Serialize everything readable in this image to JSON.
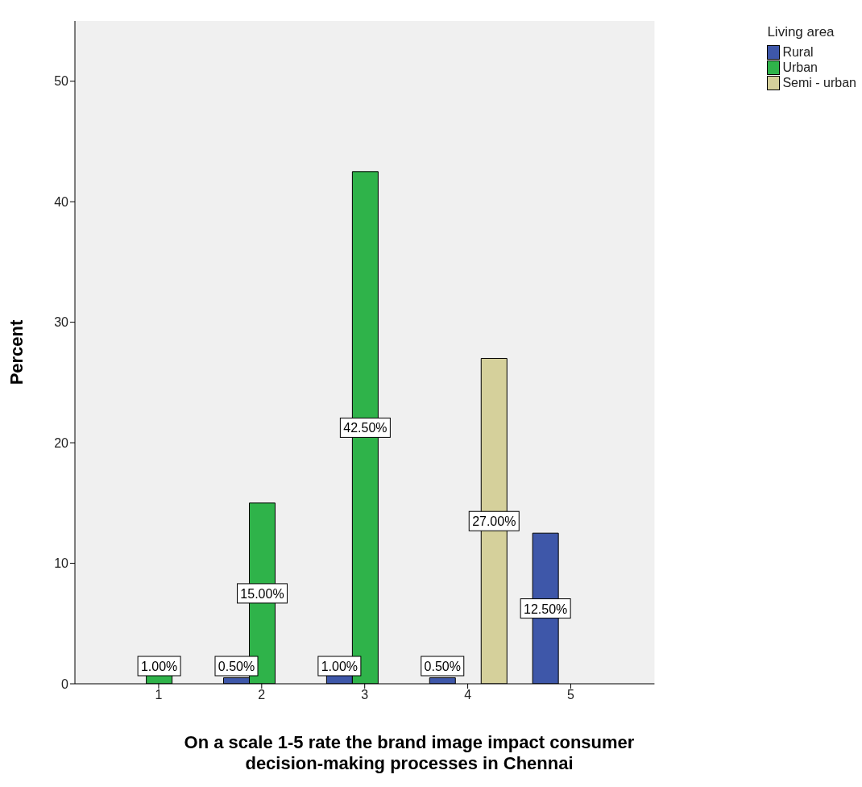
{
  "chart_data": {
    "type": "bar",
    "xlabel": "On a scale 1-5 rate the brand image impact consumer decision-making processes in Chennai",
    "ylabel": "Percent",
    "legend_title": "Living area",
    "legend": "top right",
    "categories": [
      "1",
      "2",
      "3",
      "4",
      "5"
    ],
    "ylim": [
      0,
      55
    ],
    "yticks": [
      0,
      10,
      20,
      30,
      40,
      50
    ],
    "series": [
      {
        "name": "Rural",
        "color": "#3e57a9",
        "values": [
          null,
          0.5,
          1.0,
          0.5,
          12.5
        ],
        "value_labels": [
          null,
          "0.50%",
          "1.00%",
          "0.50%",
          "12.50%"
        ]
      },
      {
        "name": "Urban",
        "color": "#2fb34a",
        "values": [
          1.0,
          15.0,
          42.5,
          null,
          null
        ],
        "value_labels": [
          "1.00%",
          "15.00%",
          "42.50%",
          null,
          null
        ]
      },
      {
        "name": "Semi - urban",
        "color": "#d5d09b",
        "values": [
          null,
          null,
          null,
          27.0,
          null
        ],
        "value_labels": [
          null,
          null,
          null,
          "27.00%",
          null
        ]
      }
    ]
  }
}
